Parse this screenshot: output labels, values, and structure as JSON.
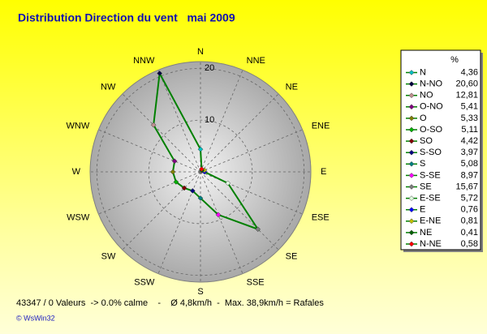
{
  "chart_data": {
    "type": "radar",
    "title": "Distribution Direction du vent   mai 2009",
    "categories": [
      "N",
      "NNW",
      "NW",
      "WNW",
      "W",
      "WSW",
      "SW",
      "SSW",
      "S",
      "SSE",
      "SE",
      "ESE",
      "E",
      "ENE",
      "NE",
      "NNE"
    ],
    "legend_title": "%",
    "legend_labels": [
      "N",
      "N-NO",
      "NO",
      "O-NO",
      "O",
      "O-SO",
      "SO",
      "S-SO",
      "S",
      "S-SE",
      "SE",
      "E-SE",
      "E",
      "E-NE",
      "NE",
      "N-NE"
    ],
    "values": [
      4.36,
      20.6,
      12.81,
      5.41,
      5.33,
      5.11,
      4.42,
      3.97,
      5.08,
      8.97,
      15.67,
      5.72,
      0.76,
      0.81,
      0.41,
      0.58
    ],
    "value_labels": [
      "4,36",
      "20,60",
      "12,81",
      "5,41",
      "5,33",
      "5,11",
      "4,42",
      "3,97",
      "5,08",
      "8,97",
      "15,67",
      "5,72",
      "0,76",
      "0,81",
      "0,41",
      "0,58"
    ],
    "point_colors": [
      "#00c0c0",
      "#000040",
      "#c09090",
      "#800080",
      "#808000",
      "#00b000",
      "#800000",
      "#000080",
      "#008080",
      "#ff00ff",
      "#808080",
      "#e0ffe0",
      "#0000ff",
      "#c0c000",
      "#006000",
      "#ff0000"
    ],
    "line_color": "#008000",
    "rlim": [
      0,
      21.3
    ],
    "rticks": [
      10,
      20
    ],
    "grid": true,
    "footer": "43347 / 0 Valeurs  -> 0.0% calme    -    Ø 4,8km/h  -  Max. 38,9km/h = Rafales",
    "credit": "© WsWin32"
  }
}
